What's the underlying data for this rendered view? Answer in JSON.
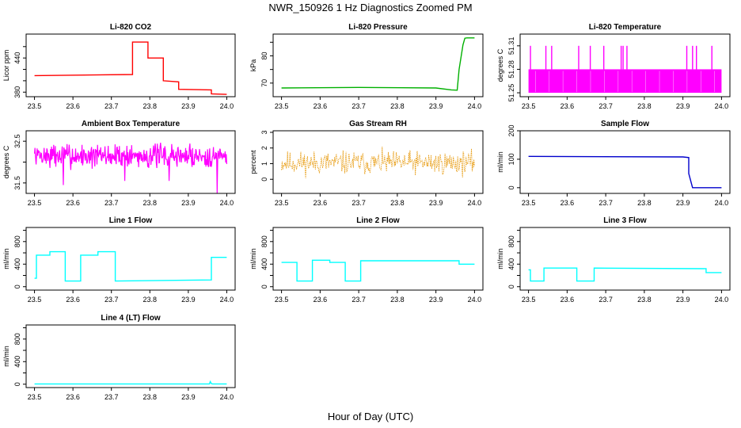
{
  "title": "NWR_150926  1 Hz Diagnostics Zoomed PM",
  "x_axis_label": "Hour of Day (UTC)",
  "x_ticks": [
    "23.5",
    "23.6",
    "23.7",
    "23.8",
    "23.9",
    "24.0"
  ],
  "chart_data": [
    {
      "type": "line",
      "title": "Li-820 CO2",
      "ylabel": "Licor ppm",
      "color": "#ff0000",
      "x_range": [
        23.5,
        24.0
      ],
      "ylim": [
        372,
        482
      ],
      "y_ticks": [
        380,
        400,
        420,
        440,
        460
      ],
      "y_tick_labels": [
        "380",
        "",
        "",
        "440",
        ""
      ],
      "x": [
        23.5,
        23.755,
        23.755,
        23.795,
        23.795,
        23.835,
        23.835,
        23.875,
        23.875,
        23.96,
        23.96,
        24.0
      ],
      "y": [
        409,
        411,
        468,
        468,
        440,
        440,
        400,
        398,
        385,
        384,
        377,
        376
      ]
    },
    {
      "type": "line",
      "title": "Li-820 Pressure",
      "ylabel": "kPa",
      "color": "#00b000",
      "x_range": [
        23.5,
        24.0
      ],
      "ylim": [
        65,
        88
      ],
      "y_ticks": [
        70,
        75,
        80,
        85
      ],
      "y_tick_labels": [
        "70",
        "",
        "80",
        ""
      ],
      "x": [
        23.5,
        23.7,
        23.9,
        23.94,
        23.94,
        23.955,
        23.96,
        23.97,
        23.975,
        23.98,
        24.0
      ],
      "y": [
        68.2,
        68.4,
        68.2,
        67.5,
        67.5,
        67.4,
        75,
        84,
        86.5,
        86.6,
        86.6
      ]
    },
    {
      "type": "line",
      "title": "Li-820 Temperature",
      "ylabel": "degrees C",
      "color": "#ff00ff",
      "x_range": [
        23.5,
        24.0
      ],
      "ylim": [
        51.245,
        51.325
      ],
      "y_ticks": [
        51.25,
        51.28,
        51.31
      ],
      "y_tick_labels": [
        "51.25",
        "51.28",
        "51.31"
      ],
      "low": 51.25,
      "high": 51.28,
      "spike": 51.31,
      "spikes_x": [
        23.505,
        23.545,
        23.56,
        23.63,
        23.66,
        23.695,
        23.74,
        23.745,
        23.755,
        23.91,
        23.925,
        23.935,
        23.975
      ]
    },
    {
      "type": "line",
      "title": "Ambient Box Temperature",
      "ylabel": "degrees C",
      "color": "#ff00ff",
      "x_range": [
        23.5,
        24.0
      ],
      "ylim": [
        31.25,
        32.75
      ],
      "y_ticks": [
        31.5,
        32.0,
        32.5
      ],
      "y_tick_labels": [
        "31.5",
        "",
        "32.5"
      ],
      "mean": 32.15,
      "noise": 0.22,
      "seed": 7,
      "dips": [
        [
          23.575,
          31.45
        ],
        [
          23.735,
          31.55
        ],
        [
          23.85,
          31.55
        ],
        [
          23.975,
          31.25
        ]
      ]
    },
    {
      "type": "scatter",
      "title": "Gas Stream RH",
      "ylabel": "percent",
      "color": "#e69500",
      "x_range": [
        23.5,
        24.0
      ],
      "ylim": [
        -0.9,
        3.1
      ],
      "y_ticks": [
        0,
        1,
        2,
        3
      ],
      "y_tick_labels": [
        "0",
        "1",
        "2",
        "3"
      ],
      "mean": 1.05,
      "noise": 0.45,
      "seed": 11
    },
    {
      "type": "line",
      "title": "Sample Flow",
      "ylabel": "ml/min",
      "color": "#0000cc",
      "x_range": [
        23.5,
        24.0
      ],
      "ylim": [
        -20,
        200
      ],
      "y_ticks": [
        0,
        100,
        200
      ],
      "y_tick_labels": [
        "0",
        "100",
        "200"
      ],
      "x": [
        23.5,
        23.9,
        23.915,
        23.915,
        23.925,
        24.0
      ],
      "y": [
        110,
        108,
        106,
        50,
        0,
        0
      ]
    },
    {
      "type": "line",
      "title": "Line 1 Flow",
      "ylabel": "ml/min",
      "color": "#00ffff",
      "x_range": [
        23.5,
        24.0
      ],
      "ylim": [
        -60,
        1050
      ],
      "y_ticks": [
        0,
        200,
        400,
        600,
        800,
        1000
      ],
      "y_tick_labels": [
        "0",
        "",
        "400",
        "",
        "800",
        ""
      ],
      "x": [
        23.5,
        23.505,
        23.505,
        23.54,
        23.54,
        23.58,
        23.58,
        23.62,
        23.62,
        23.665,
        23.665,
        23.71,
        23.71,
        23.96,
        23.96,
        24.0
      ],
      "y": [
        150,
        150,
        560,
        560,
        620,
        620,
        100,
        100,
        560,
        560,
        620,
        620,
        100,
        120,
        520,
        520
      ]
    },
    {
      "type": "line",
      "title": "Line 2 Flow",
      "ylabel": "ml/min",
      "color": "#00ffff",
      "x_range": [
        23.5,
        24.0
      ],
      "ylim": [
        -60,
        1050
      ],
      "y_ticks": [
        0,
        200,
        400,
        600,
        800,
        1000
      ],
      "y_tick_labels": [
        "0",
        "",
        "400",
        "",
        "800",
        ""
      ],
      "x": [
        23.5,
        23.54,
        23.54,
        23.58,
        23.58,
        23.625,
        23.625,
        23.665,
        23.665,
        23.705,
        23.705,
        23.96,
        23.96,
        24.0
      ],
      "y": [
        430,
        430,
        100,
        100,
        470,
        470,
        430,
        430,
        100,
        100,
        460,
        460,
        400,
        400
      ]
    },
    {
      "type": "line",
      "title": "Line 3 Flow",
      "ylabel": "ml/min",
      "color": "#00ffff",
      "x_range": [
        23.5,
        24.0
      ],
      "ylim": [
        -60,
        1050
      ],
      "y_ticks": [
        0,
        200,
        400,
        600,
        800,
        1000
      ],
      "y_tick_labels": [
        "0",
        "",
        "400",
        "",
        "800",
        ""
      ],
      "x": [
        23.5,
        23.505,
        23.505,
        23.54,
        23.54,
        23.625,
        23.625,
        23.67,
        23.67,
        23.96,
        23.96,
        24.0
      ],
      "y": [
        300,
        300,
        100,
        100,
        330,
        330,
        100,
        100,
        330,
        320,
        250,
        250
      ]
    },
    {
      "type": "line",
      "title": "Line 4 (LT) Flow",
      "ylabel": "ml/min",
      "color": "#00ffff",
      "x_range": [
        23.5,
        24.0
      ],
      "ylim": [
        -60,
        1050
      ],
      "y_ticks": [
        0,
        200,
        400,
        600,
        800,
        1000
      ],
      "y_tick_labels": [
        "0",
        "",
        "400",
        "",
        "800",
        ""
      ],
      "x": [
        23.5,
        23.955,
        23.957,
        23.96,
        23.963,
        24.0
      ],
      "y": [
        5,
        5,
        45,
        10,
        5,
        5
      ]
    }
  ]
}
